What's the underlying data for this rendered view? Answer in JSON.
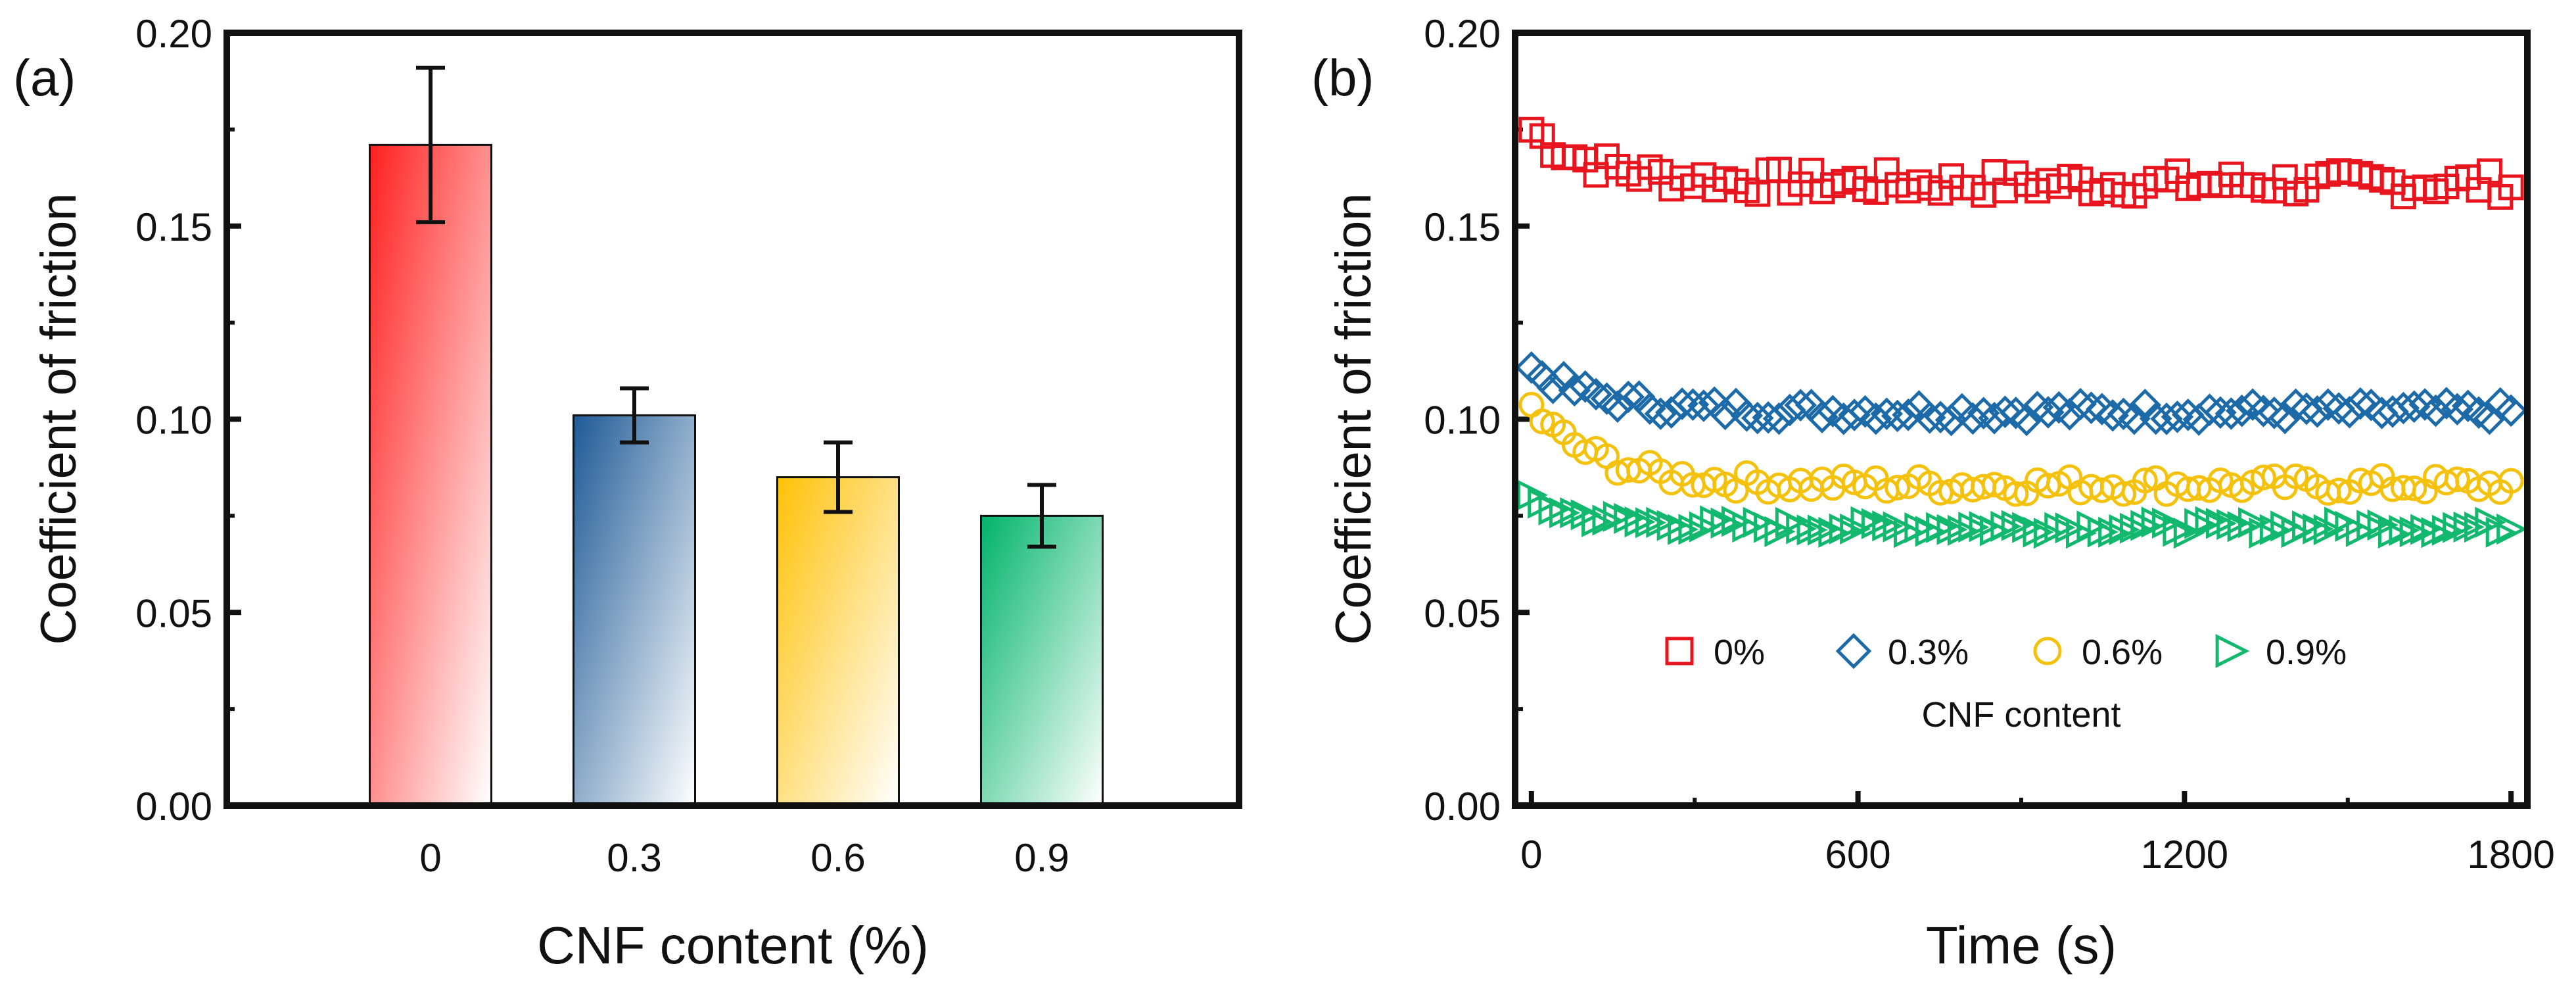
{
  "chart_data": [
    {
      "type": "bar",
      "panel_label": "(a)",
      "xlabel": "CNF content (%)",
      "ylabel": "Coefficient of friction",
      "categories": [
        "0",
        "0.3",
        "0.6",
        "0.9"
      ],
      "values": [
        0.171,
        0.101,
        0.085,
        0.075
      ],
      "errors": [
        0.02,
        0.007,
        0.009,
        0.008
      ],
      "colors": [
        "#ff2020",
        "#1f5a96",
        "#ffc107",
        "#00b36b"
      ],
      "ylim": [
        0,
        0.2
      ],
      "yticks": [
        "0.00",
        "0.05",
        "0.10",
        "0.15",
        "0.20"
      ]
    },
    {
      "type": "scatter",
      "panel_label": "(b)",
      "xlabel": "Time (s)",
      "ylabel": "Coefficient of friction",
      "xlim": [
        -30,
        1830
      ],
      "ylim": [
        0,
        0.2
      ],
      "xticks": [
        "0",
        "600",
        "1200",
        "1800"
      ],
      "yticks": [
        "0.00",
        "0.05",
        "0.10",
        "0.15",
        "0.20"
      ],
      "legend_title": "CNF content",
      "legend_position": "lower-center",
      "series": [
        {
          "name": "0%",
          "marker": "square",
          "color": "#e8141e",
          "start": 0.175,
          "mean": 0.161,
          "jitter": 0.0035
        },
        {
          "name": "0.3%",
          "marker": "diamond",
          "color": "#1c6aa8",
          "start": 0.113,
          "mean": 0.102,
          "jitter": 0.0022
        },
        {
          "name": "0.6%",
          "marker": "circle",
          "color": "#f4c20d",
          "start": 0.103,
          "mean": 0.083,
          "jitter": 0.0025
        },
        {
          "name": "0.9%",
          "marker": "triangle-right",
          "color": "#12b86e",
          "start": 0.079,
          "mean": 0.072,
          "jitter": 0.0015
        }
      ]
    }
  ]
}
